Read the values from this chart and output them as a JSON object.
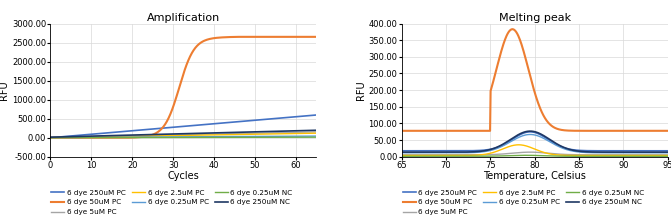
{
  "amp_title": "Amplification",
  "amp_xlabel": "Cycles",
  "amp_ylabel": "RFU",
  "amp_xlim": [
    0,
    65
  ],
  "amp_ylim": [
    -500,
    3000
  ],
  "amp_yticks": [
    -500,
    0,
    500,
    1000,
    1500,
    2000,
    2500,
    3000
  ],
  "amp_xticks": [
    0,
    10,
    20,
    30,
    40,
    50,
    60
  ],
  "melt_title": "Melting peak",
  "melt_xlabel": "Temperature, Celsius",
  "melt_ylabel": "RFU",
  "melt_xlim": [
    65,
    95
  ],
  "melt_ylim": [
    0,
    400
  ],
  "melt_yticks": [
    0,
    50,
    100,
    150,
    200,
    250,
    300,
    350,
    400
  ],
  "melt_xticks": [
    65,
    70,
    75,
    80,
    85,
    90,
    95
  ],
  "series": [
    {
      "label": "6 dye 250uM PC",
      "color": "#4472c4",
      "lw": 1.2
    },
    {
      "label": "6 dye 50uM PC",
      "color": "#ed7d31",
      "lw": 1.5
    },
    {
      "label": "6 dye 5uM PC",
      "color": "#a5a5a5",
      "lw": 1.0
    },
    {
      "label": "6 dye 2.5uM PC",
      "color": "#ffc000",
      "lw": 1.0
    },
    {
      "label": "6 dye 0.25uM PC",
      "color": "#5b9bd5",
      "lw": 1.0
    },
    {
      "label": "6 dye 0.25uM NC",
      "color": "#70ad47",
      "lw": 1.0
    },
    {
      "label": "6 dye 250uM NC",
      "color": "#1f3864",
      "lw": 1.2
    }
  ],
  "leg1_order": [
    0,
    1,
    2,
    3,
    4,
    5,
    6
  ],
  "leg2_order": [
    0,
    1,
    2,
    3,
    4,
    5,
    6
  ],
  "background_color": "#ffffff",
  "plot_bg": "#ffffff",
  "grid_color": "#d9d9d9"
}
